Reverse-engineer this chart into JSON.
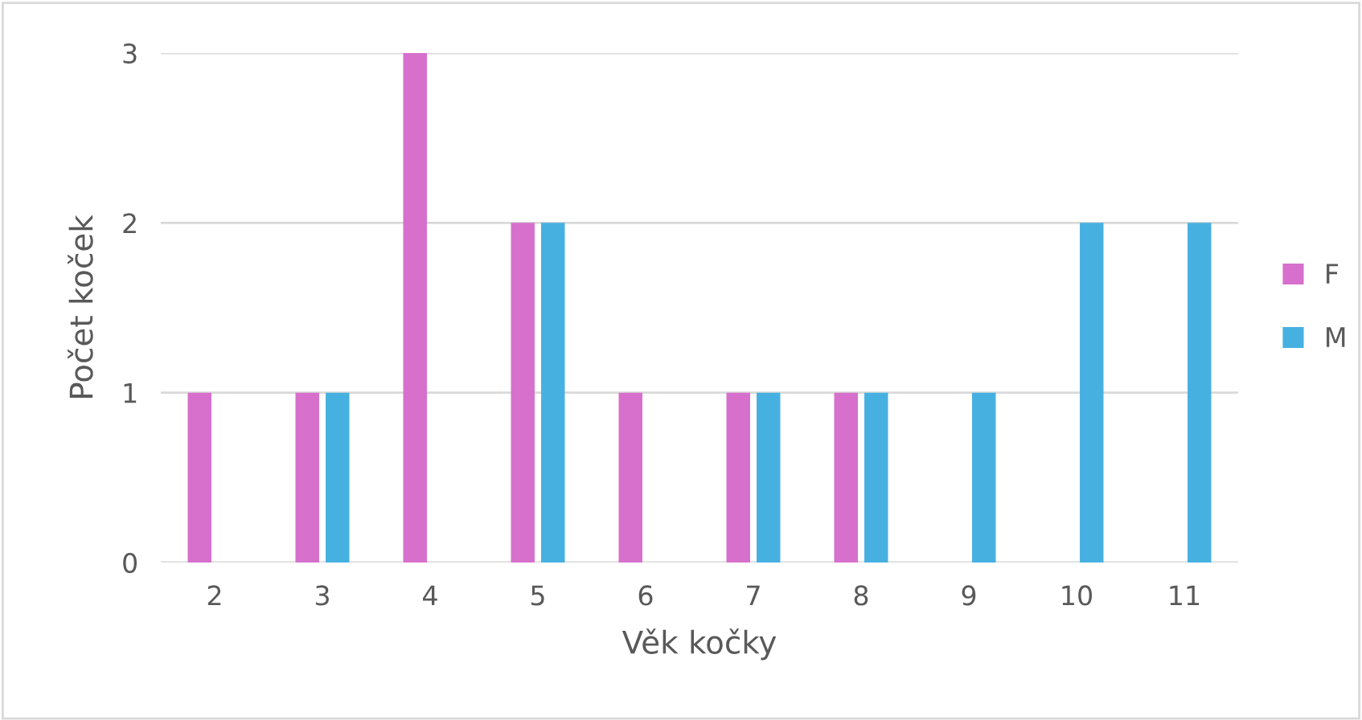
{
  "chart_data": {
    "type": "bar",
    "xlabel": "Věk kočky",
    "ylabel": "Počet koček",
    "categories": [
      "2",
      "3",
      "4",
      "5",
      "6",
      "7",
      "8",
      "9",
      "10",
      "11"
    ],
    "series": [
      {
        "name": "F",
        "color": "#d670cc",
        "values": [
          1,
          1,
          3,
          2,
          1,
          1,
          1,
          0,
          0,
          0
        ]
      },
      {
        "name": "M",
        "color": "#46b1e1",
        "values": [
          0,
          1,
          0,
          2,
          0,
          1,
          1,
          1,
          2,
          2
        ]
      }
    ],
    "ylim": [
      0,
      3
    ],
    "yticks": [
      0,
      1,
      2,
      3
    ],
    "grid": "y",
    "legend": "right"
  }
}
